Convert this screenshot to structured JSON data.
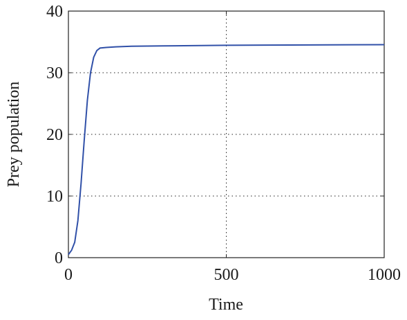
{
  "chart_data": {
    "type": "line",
    "xlabel": "Time",
    "ylabel": "Prey population",
    "x": [
      0,
      10,
      20,
      30,
      40,
      50,
      60,
      70,
      80,
      90,
      100,
      120,
      150,
      200,
      300,
      500,
      700,
      1000
    ],
    "series": [
      {
        "color": "#3050a8",
        "values": [
          0.5,
          1.2,
          2.5,
          6,
          12,
          19,
          25.5,
          30,
          32.5,
          33.6,
          34,
          34.1,
          34.2,
          34.3,
          34.35,
          34.45,
          34.5,
          34.55
        ]
      }
    ],
    "xlim": [
      0,
      1000
    ],
    "ylim": [
      0,
      40
    ],
    "xticks": [
      0,
      500,
      1000
    ],
    "yticks": [
      0,
      10,
      20,
      30,
      40
    ],
    "grid": true
  }
}
